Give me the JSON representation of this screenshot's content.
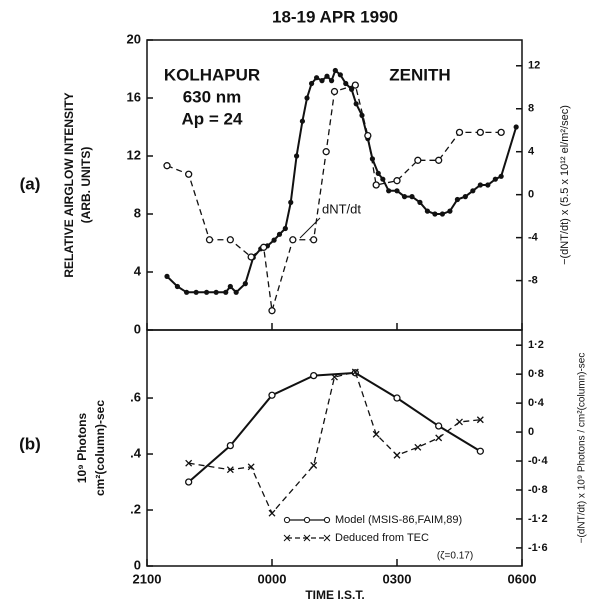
{
  "chart_data": [
    {
      "type": "line",
      "title": "18-19 APR 1990",
      "label": "(a)",
      "ylabel": [
        "RELATIVE AIRGLOW INTENSITY",
        "(ARB. UNITS)"
      ],
      "y2label": "−(dNT/dt) x (5.5 x 10¹² el/m²/sec)",
      "annotations": [
        "KOLHAPUR",
        "630 nm",
        "Ap = 24",
        "ZENITH",
        "dNT/dt"
      ],
      "xlim": [
        21,
        30
      ],
      "ylim": [
        0,
        20
      ],
      "yticks": [
        0,
        4,
        8,
        12,
        16,
        20
      ],
      "y2lim": [
        -12.6,
        14.4
      ],
      "y2ticks": [
        -8,
        -4,
        0,
        4,
        8,
        12
      ],
      "series": [
        {
          "color": "#111111",
          "marker": "dot",
          "dashed": false,
          "x": [
            21.48,
            21.73,
            21.95,
            22.18,
            22.43,
            22.66,
            22.89,
            23.0,
            23.14,
            23.36,
            23.55,
            23.73,
            23.89,
            24.05,
            24.18,
            24.32,
            24.45,
            24.59,
            24.73,
            24.84,
            24.95,
            25.07,
            25.2,
            25.32,
            25.43,
            25.52,
            25.64,
            25.77,
            25.91,
            26.02,
            26.16,
            26.3,
            26.41,
            26.55,
            26.66,
            26.8,
            27.0,
            27.18,
            27.36,
            27.55,
            27.73,
            27.91,
            28.09,
            28.27,
            28.45,
            28.64,
            28.82,
            29.0,
            29.18,
            29.36,
            29.5,
            29.86
          ],
          "values": [
            3.7,
            3.0,
            2.6,
            2.6,
            2.6,
            2.6,
            2.6,
            3.0,
            2.6,
            3.2,
            5.0,
            5.6,
            5.8,
            6.2,
            6.6,
            7.0,
            8.8,
            12.0,
            14.4,
            16.0,
            17.0,
            17.4,
            17.2,
            17.5,
            17.2,
            17.9,
            17.6,
            17.0,
            16.6,
            15.6,
            14.8,
            13.2,
            11.8,
            10.8,
            10.4,
            9.6,
            9.6,
            9.2,
            9.2,
            8.8,
            8.2,
            8.0,
            8.0,
            8.2,
            9.0,
            9.2,
            9.6,
            10.0,
            10.0,
            10.4,
            10.6,
            14.0
          ]
        },
        {
          "color": "#111111",
          "marker": "circle",
          "dashed": true,
          "axis": "y2",
          "x": [
            21.48,
            22.0,
            22.5,
            23.0,
            23.5,
            23.8,
            24.0,
            24.5,
            25.0,
            25.3,
            25.5,
            26.0,
            26.3,
            26.5,
            27.0,
            27.5,
            28.0,
            28.5,
            29.0,
            29.5
          ],
          "values": [
            2.7,
            1.9,
            -4.2,
            -4.2,
            -5.8,
            -4.9,
            -10.8,
            -4.2,
            -4.2,
            4.0,
            9.6,
            10.2,
            5.5,
            0.9,
            1.3,
            3.2,
            3.2,
            5.8,
            5.8,
            5.8
          ]
        }
      ]
    },
    {
      "type": "line",
      "label": "(b)",
      "xlabel": "TIME  I.S.T.",
      "ylabel": [
        "10⁹ Photons",
        "cm²(column)-sec"
      ],
      "y2label": "−(dNT/dt) x 10⁹ Photons / cm²(column)-sec",
      "legend_note": "(ζ=0.17)",
      "xlim": [
        21,
        30
      ],
      "xticks": [
        {
          "value": 21,
          "label": "2100"
        },
        {
          "value": 24,
          "label": "0000"
        },
        {
          "value": 27,
          "label": "0300"
        },
        {
          "value": 30,
          "label": "0600"
        }
      ],
      "ylim": [
        0,
        0.843
      ],
      "yticks": [
        0,
        {
          "value": 0.2,
          "label": ".2"
        },
        {
          "value": 0.4,
          "label": ".4"
        },
        {
          "value": 0.6,
          "label": ".6"
        }
      ],
      "y2lim": [
        -1.85,
        1.41
      ],
      "y2ticks": [
        {
          "value": -1.6,
          "label": "-1·6"
        },
        {
          "value": -1.2,
          "label": "-1·2"
        },
        {
          "value": -0.8,
          "label": "-0·8"
        },
        {
          "value": -0.4,
          "label": "-0·4"
        },
        0,
        {
          "value": 0.4,
          "label": "0·4"
        },
        {
          "value": 0.8,
          "label": "0·8"
        },
        {
          "value": 1.2,
          "label": "1·2"
        }
      ],
      "legend": "lower right",
      "series": [
        {
          "name": "Model (MSIS-86,FAIM,89)",
          "color": "#111111",
          "marker": "circle",
          "dashed": false,
          "x": [
            22,
            23,
            24,
            25,
            26,
            27,
            28,
            29
          ],
          "values": [
            0.3,
            0.43,
            0.61,
            0.68,
            0.69,
            0.6,
            0.5,
            0.41
          ]
        },
        {
          "name": "Deduced from TEC",
          "color": "#111111",
          "marker": "x",
          "dashed": true,
          "axis": "y2",
          "x": [
            22,
            23,
            23.5,
            24,
            25,
            25.5,
            26,
            26.5,
            27,
            27.5,
            28,
            28.5,
            29
          ],
          "values": [
            -0.43,
            -0.52,
            -0.48,
            -1.12,
            -0.46,
            0.76,
            0.83,
            -0.03,
            -0.32,
            -0.21,
            -0.08,
            0.14,
            0.17
          ]
        }
      ]
    }
  ]
}
